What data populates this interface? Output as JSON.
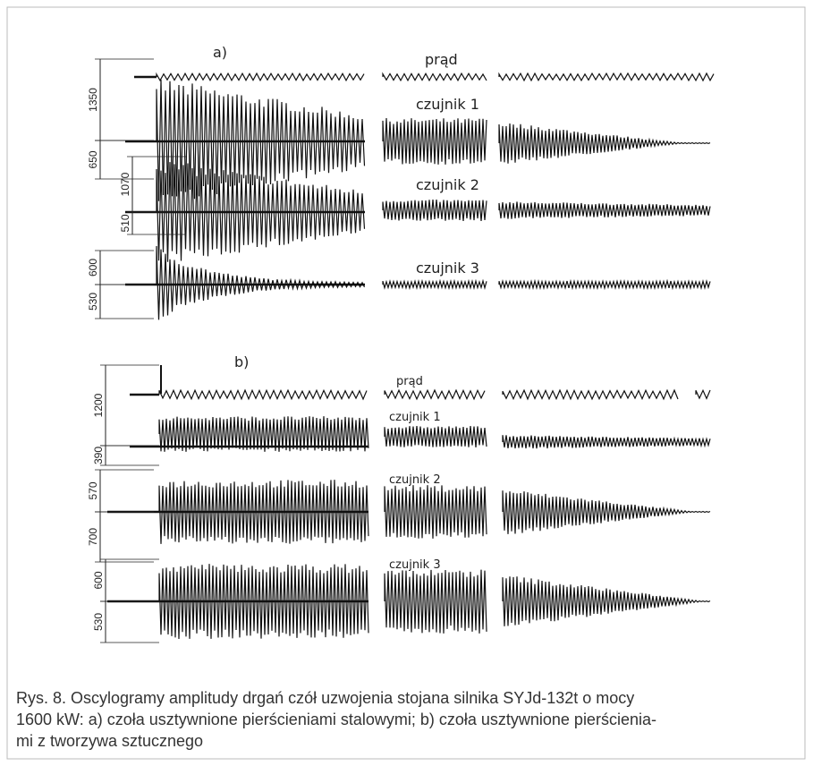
{
  "panels": [
    {
      "label": "a)",
      "signals": [
        "prąd",
        "czujnik 1",
        "czujnik 2",
        "czujnik 3"
      ],
      "dimensions": [
        "1350",
        "650",
        "1070",
        "510",
        "600",
        "530"
      ]
    },
    {
      "label": "b)",
      "signals": [
        "prąd",
        "czujnik 1",
        "czujnik 2",
        "czujnik 3"
      ],
      "dimensions": [
        "1200",
        "390",
        "570",
        "700",
        "600",
        "530"
      ]
    }
  ],
  "caption": [
    "Rys. 8. Oscylogramy amplitudy drgań czół uzwojenia stojana silnika SYJd-132t o mocy",
    "1600 kW: a) czoła usztywnione pierścieniami stalowymi; b) czoła usztywnione pierścienia-",
    "mi z tworzywa sztucznego"
  ]
}
